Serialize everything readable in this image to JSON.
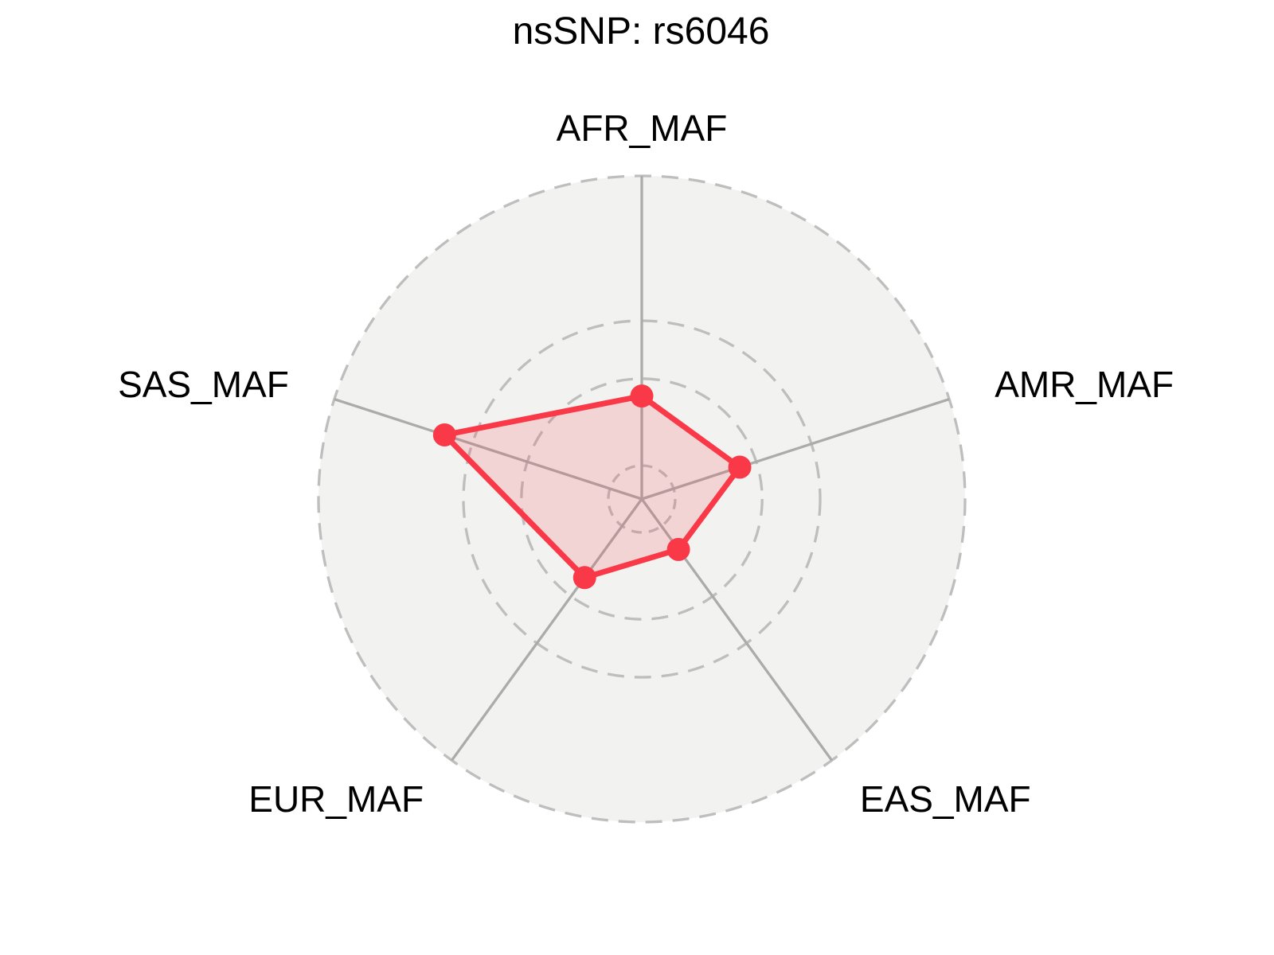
{
  "chart_data": {
    "type": "radar",
    "title": "nsSNP: rs6046",
    "categories": [
      "AFR_MAF",
      "AMR_MAF",
      "EAS_MAF",
      "EUR_MAF",
      "SAS_MAF"
    ],
    "series": [
      {
        "name": "rs6046",
        "values": [
          0.12,
          0.12,
          0.05,
          0.11,
          0.3
        ]
      }
    ],
    "radial_axis": {
      "min": 0,
      "max": 0.5,
      "rings": [
        0,
        0.15,
        0.25,
        0.5
      ],
      "tick_labels_visible": false
    },
    "start_angle_deg": 90,
    "direction": "clockwise",
    "grid": {
      "style": "dashed",
      "visible": true
    },
    "legend": "none",
    "colors": {
      "series_stroke": "#F93848",
      "series_fill_rgba": "rgba(249,56,72,0.16)",
      "marker": "#F93848",
      "polar_background": "#F2F2F0",
      "ring_stroke": "#BEBEBE",
      "spoke_stroke": "#ABABAB",
      "text": "#000000",
      "page_background": "#FFFFFF"
    }
  }
}
